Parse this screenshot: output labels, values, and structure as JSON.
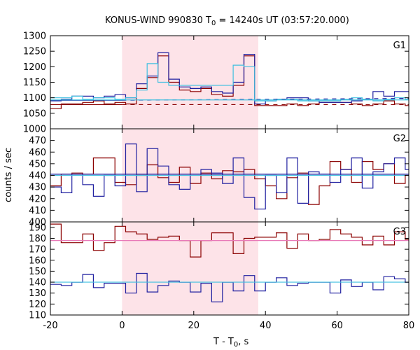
{
  "title": "KONUS-WIND 990830 T",
  "title_sub": "0",
  "title_rest": " = 14240s UT (03:57:20.000)",
  "xlabel": "T - T",
  "xlabel_sub": "0",
  "xlabel_rest": ", s",
  "ylabel": "counts / sec",
  "colors": {
    "series_red": "#8b0000",
    "series_blue": "#2020a0",
    "fit_pink": "#e87ab8",
    "fit_cyan": "#40c0e0",
    "highlight": "#fde3e8"
  },
  "chart_data": {
    "type": "line",
    "xlim": [
      -20,
      80
    ],
    "xticks": [
      -20,
      0,
      20,
      40,
      60,
      80
    ],
    "highlight_interval": [
      0,
      38
    ],
    "bin_width": 3,
    "bin_start": -20,
    "panels": [
      {
        "label": "G1",
        "ylim": [
          1000,
          1300
        ],
        "yticks": [
          1000,
          1050,
          1100,
          1150,
          1200,
          1250,
          1300
        ],
        "series": [
          {
            "values": [
              1065,
              1080,
              1080,
              1085,
              1090,
              1080,
              1085,
              1080,
              1130,
              1165,
              1235,
              1150,
              1125,
              1120,
              1130,
              1110,
              1105,
              1140,
              1235,
              1075,
              1075,
              1075,
              1080,
              1075,
              1080,
              1085,
              1085,
              1085,
              1080,
              1075,
              1080,
              1090,
              1080,
              1075
            ]
          },
          {
            "values": [
              1090,
              1095,
              1105,
              1105,
              1100,
              1105,
              1110,
              1100,
              1145,
              1170,
              1245,
              1160,
              1135,
              1130,
              1135,
              1120,
              1115,
              1150,
              1240,
              1080,
              1090,
              1095,
              1100,
              1100,
              1090,
              1085,
              1085,
              1085,
              1090,
              1095,
              1120,
              1105,
              1120,
              1120
            ]
          },
          {
            "values": [
              1100,
              1100,
              1105,
              1095,
              1100,
              1100,
              1095,
              1100,
              1125,
              1210,
              1150,
              1140,
              1140,
              1140,
              1140,
              1140,
              1140,
              1205,
              1200,
              1090,
              1090,
              1095,
              1095,
              1090,
              1090,
              1090,
              1090,
              1095,
              1100,
              1095,
              1090,
              1095,
              1100,
              1095
            ]
          }
        ],
        "fits": [
          {
            "type": "red",
            "solid": [
              [
                -20,
                1078
              ],
              [
                0,
                1078
              ]
            ],
            "dashed": [
              [
                0,
                1078
              ],
              [
                80,
                1078
              ]
            ]
          },
          {
            "type": "blue",
            "solid": [
              [
                -20,
                1092
              ],
              [
                0,
                1092
              ]
            ],
            "dashed": [
              [
                0,
                1092
              ],
              [
                80,
                1098
              ]
            ]
          },
          {
            "type": "cyan",
            "solid": [
              [
                -20,
                1093
              ],
              [
                80,
                1093
              ]
            ]
          }
        ]
      },
      {
        "label": "G2",
        "ylim": [
          400,
          480
        ],
        "yticks": [
          400,
          410,
          420,
          430,
          440,
          450,
          460,
          470
        ],
        "series": [
          {
            "values": [
              431,
              441,
              442,
              441,
              455,
              455,
              434,
              432,
              440,
              449,
              438,
              434,
              447,
              433,
              442,
              437,
              444,
              443,
              445,
              437,
              431,
              420,
              438,
              442,
              415,
              431,
              452,
              445,
              434,
              452,
              445,
              450,
              433,
              440
            ]
          },
          {
            "values": [
              430,
              425,
              441,
              432,
              422,
              440,
              431,
              467,
              426,
              463,
              448,
              432,
              428,
              441,
              445,
              442,
              433,
              455,
              421,
              411,
              440,
              425,
              455,
              416,
              443,
              441,
              434,
              445,
              455,
              429,
              443,
              450,
              455,
              445
            ]
          }
        ],
        "fits": [
          {
            "type": "cyan",
            "solid": [
              [
                -20,
                440
              ],
              [
                80,
                440
              ]
            ]
          },
          {
            "type": "blue",
            "solid": [
              [
                -20,
                441
              ],
              [
                80,
                441
              ]
            ]
          }
        ]
      },
      {
        "label": "G3",
        "ylim": [
          110,
          195
        ],
        "yticks": [
          110,
          120,
          130,
          140,
          150,
          160,
          170,
          180,
          190
        ],
        "series": [
          {
            "values": [
              193,
              176,
              176,
              184,
              169,
              176,
              191,
              186,
              184,
              179,
              181,
              182,
              178,
              163,
              178,
              185,
              185,
              166,
              180,
              181,
              181,
              185,
              171,
              184,
              178,
              179,
              188,
              184,
              181,
              174,
              182,
              174,
              186,
              179
            ]
          },
          {
            "values": [
              138,
              137,
              140,
              147,
              135,
              139,
              139,
              130,
              148,
              131,
              137,
              141,
              140,
              131,
              139,
              122,
              140,
              132,
              146,
              132,
              140,
              144,
              137,
              139,
              140,
              140,
              130,
              142,
              136,
              140,
              133,
              145,
              143,
              140
            ]
          }
        ],
        "fits": [
          {
            "type": "pink",
            "solid": [
              [
                -20,
                178
              ],
              [
                80,
                178
              ]
            ]
          },
          {
            "type": "cyan",
            "solid": [
              [
                -20,
                140
              ],
              [
                80,
                140
              ]
            ]
          }
        ]
      }
    ]
  }
}
